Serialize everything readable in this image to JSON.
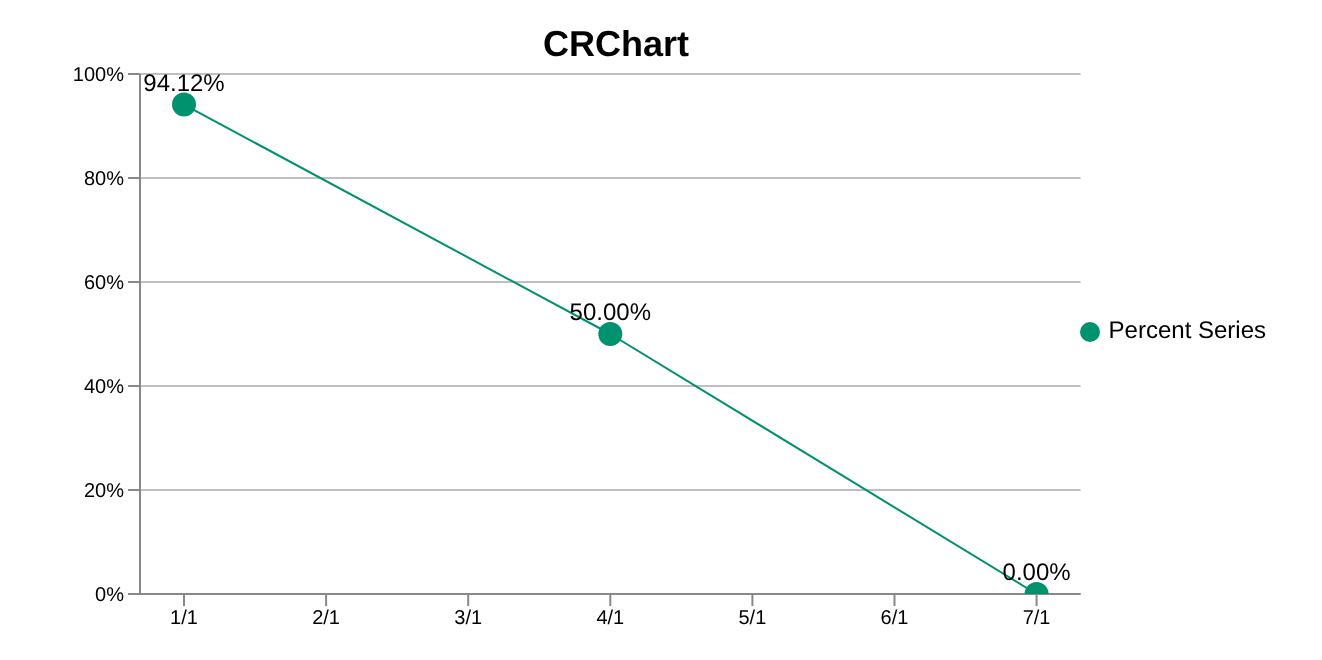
{
  "chart_data": {
    "type": "line",
    "title": "CRChart",
    "categories": [
      "1/1",
      "2/1",
      "3/1",
      "4/1",
      "5/1",
      "6/1",
      "7/1"
    ],
    "series": [
      {
        "name": "Percent Series",
        "color": "#00916e",
        "values": [
          94.12,
          null,
          null,
          50,
          null,
          null,
          0
        ],
        "value_labels": [
          "94.12%",
          null,
          null,
          "50.00%",
          null,
          null,
          "0.00%"
        ]
      }
    ],
    "ylim": [
      0,
      100
    ],
    "yticks": [
      {
        "value": 0,
        "label": "0%"
      },
      {
        "value": 20,
        "label": "20%"
      },
      {
        "value": 40,
        "label": "40%"
      },
      {
        "value": 60,
        "label": "60%"
      },
      {
        "value": 80,
        "label": "80%"
      },
      {
        "value": 100,
        "label": "100%"
      }
    ],
    "grid": "y",
    "legend": "right",
    "marker": "circle"
  }
}
